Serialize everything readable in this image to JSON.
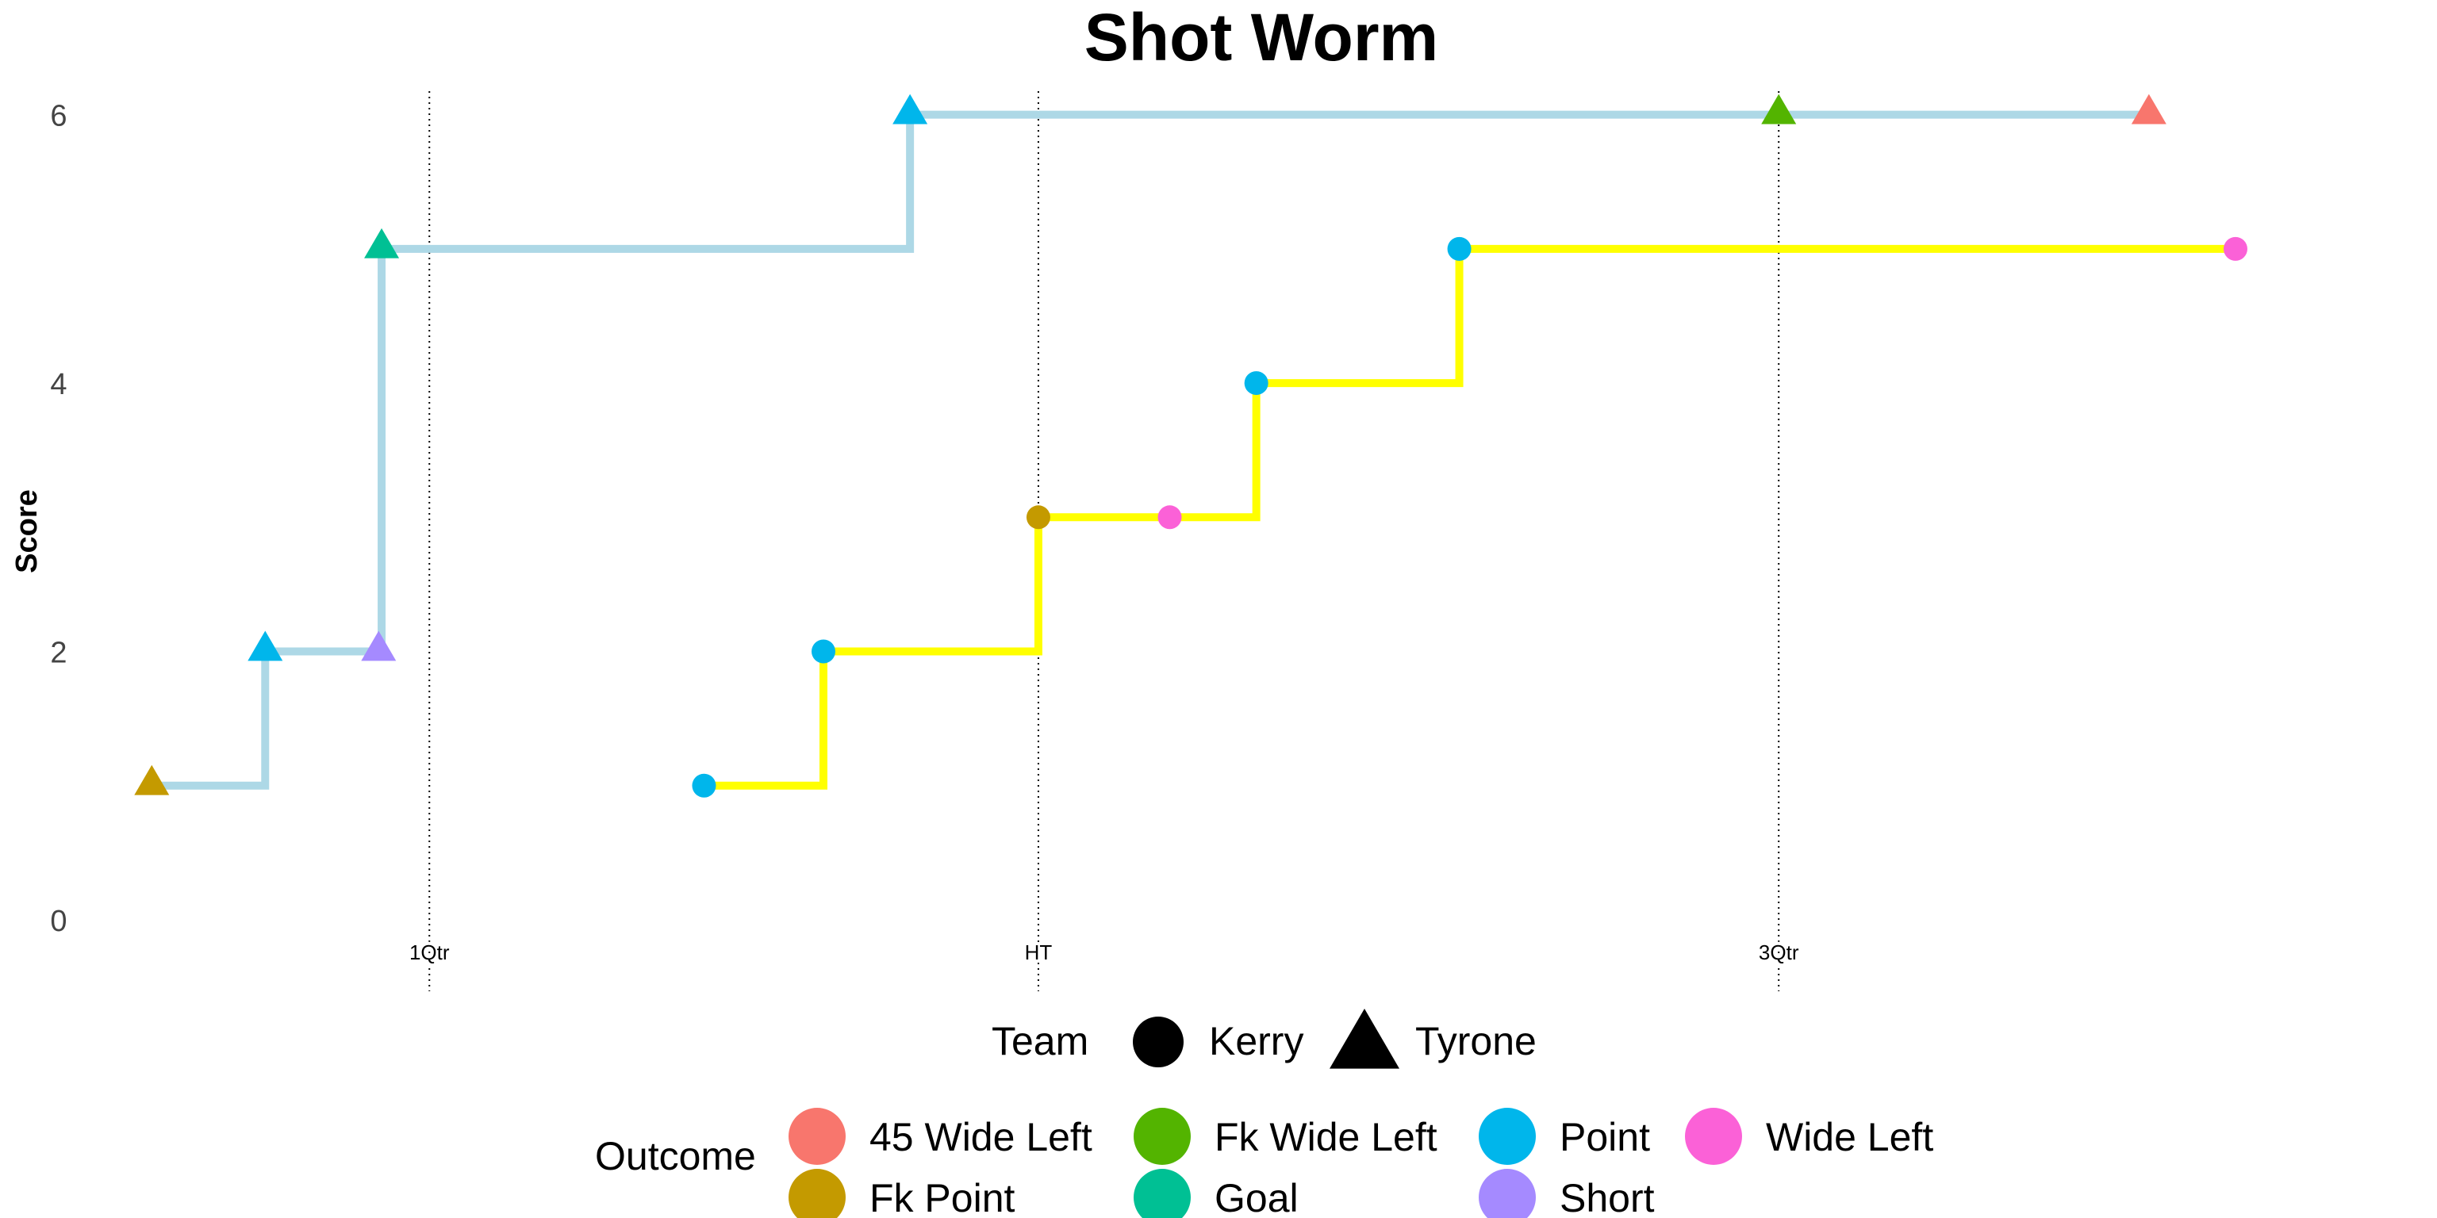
{
  "chart_data": {
    "type": "line",
    "title": "Shot Worm",
    "xlabel": "",
    "ylabel": "Score",
    "y_ticks": [
      "0",
      "2",
      "4",
      "6"
    ],
    "ylim": [
      0,
      6.5
    ],
    "xlim": [
      0,
      76
    ],
    "grid": false,
    "step_lines": true,
    "vertical_markers": [
      {
        "label": "1Qtr",
        "x": 9.6
      },
      {
        "label": "HT",
        "x": 30.0
      },
      {
        "label": "3Qtr",
        "x": 54.8
      }
    ],
    "teams": [
      {
        "name": "Kerry",
        "shape": "circle",
        "line_color": "#ffff00"
      },
      {
        "name": "Tyrone",
        "shape": "triangle",
        "line_color": "#add8e6"
      }
    ],
    "outcomes": [
      {
        "name": "45 Wide Left",
        "color": "#f8766d"
      },
      {
        "name": "Fk Point",
        "color": "#c49a00"
      },
      {
        "name": "Fk Wide Left",
        "color": "#53b400"
      },
      {
        "name": "Goal",
        "color": "#00c094"
      },
      {
        "name": "Point",
        "color": "#00b6eb"
      },
      {
        "name": "Short",
        "color": "#a58aff"
      },
      {
        "name": "Wide Left",
        "color": "#fb61d7"
      }
    ],
    "series": [
      {
        "team": "Tyrone",
        "points": [
          {
            "x": 0.3,
            "y": 1,
            "outcome": "Fk Point"
          },
          {
            "x": 4.1,
            "y": 2,
            "outcome": "Point"
          },
          {
            "x": 7.9,
            "y": 2,
            "outcome": "Short"
          },
          {
            "x": 8.0,
            "y": 5,
            "outcome": "Goal"
          },
          {
            "x": 25.7,
            "y": 6,
            "outcome": "Point"
          },
          {
            "x": 54.8,
            "y": 6,
            "outcome": "Fk Wide Left"
          },
          {
            "x": 67.2,
            "y": 6,
            "outcome": "45 Wide Left"
          }
        ]
      },
      {
        "team": "Kerry",
        "points": [
          {
            "x": 18.8,
            "y": 1,
            "outcome": "Point"
          },
          {
            "x": 22.8,
            "y": 2,
            "outcome": "Point"
          },
          {
            "x": 30.0,
            "y": 3,
            "outcome": "Fk Point"
          },
          {
            "x": 34.4,
            "y": 3,
            "outcome": "Wide Left"
          },
          {
            "x": 37.3,
            "y": 4,
            "outcome": "Point"
          },
          {
            "x": 44.1,
            "y": 5,
            "outcome": "Point"
          },
          {
            "x": 70.1,
            "y": 5,
            "outcome": "Wide Left"
          }
        ]
      }
    ],
    "legend": {
      "placement": "bottom",
      "team_title": "Team",
      "outcome_title": "Outcome"
    }
  }
}
